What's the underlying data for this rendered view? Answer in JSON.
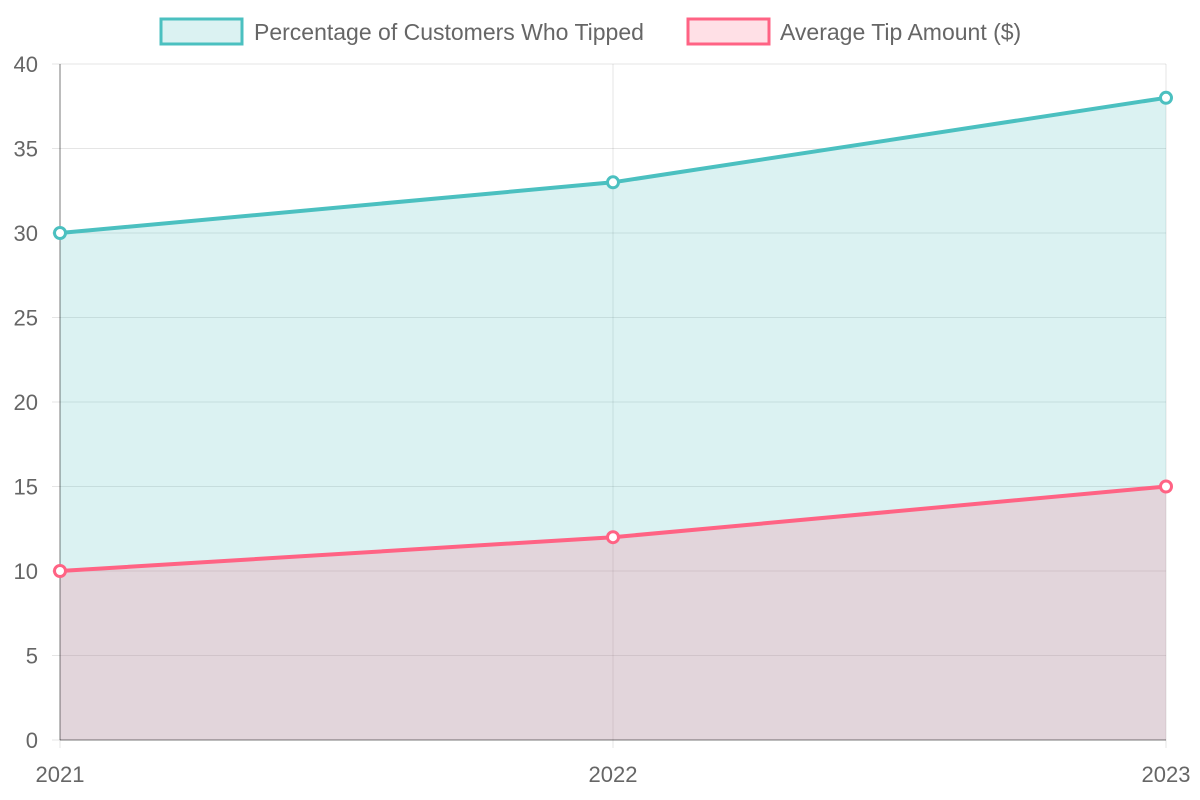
{
  "chart_data": {
    "type": "area",
    "categories": [
      "2021",
      "2022",
      "2023"
    ],
    "series": [
      {
        "name": "Percentage of Customers Who Tipped",
        "values": [
          30,
          33,
          38
        ],
        "color": "#4bc0c0",
        "fill": "rgba(75,192,192,0.2)"
      },
      {
        "name": "Average Tip Amount ($)",
        "values": [
          10,
          12,
          15
        ],
        "color": "#ff6384",
        "fill": "rgba(255,99,132,0.2)"
      }
    ],
    "ylim": [
      0,
      40
    ],
    "y_ticks": [
      "0",
      "5",
      "10",
      "15",
      "20",
      "25",
      "30",
      "35",
      "40"
    ],
    "grid": true,
    "legend_position": "top"
  }
}
